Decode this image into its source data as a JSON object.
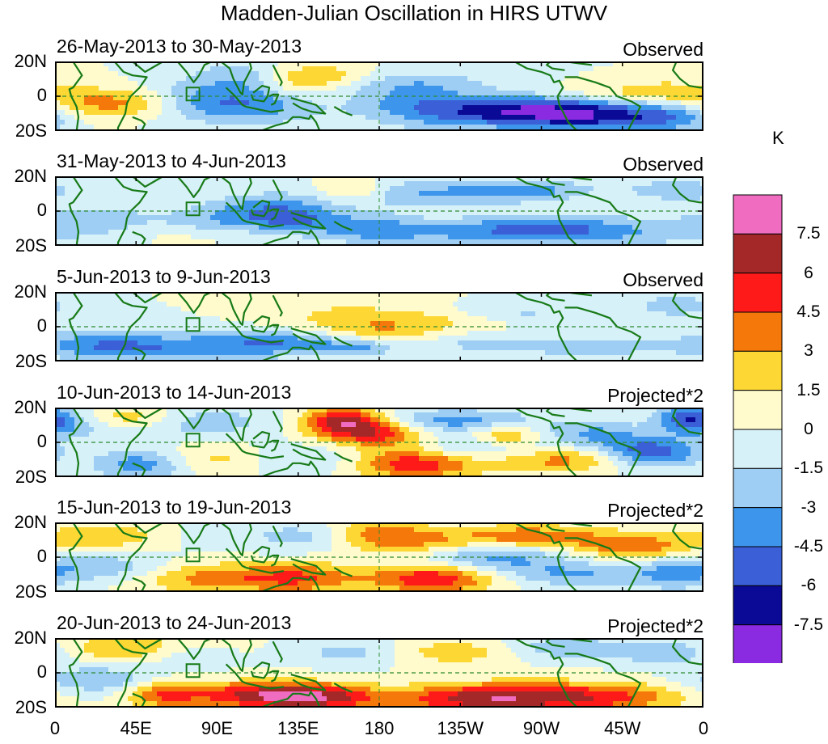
{
  "title": "Madden-Julian Oscillation in HIRS UTWV",
  "panels": [
    {
      "date_range": "26-May-2013 to 30-May-2013",
      "label": "Observed"
    },
    {
      "date_range": "31-May-2013 to 4-Jun-2013",
      "label": "Observed"
    },
    {
      "date_range": "5-Jun-2013 to 9-Jun-2013",
      "label": "Observed"
    },
    {
      "date_range": "10-Jun-2013 to 14-Jun-2013",
      "label": "Projected*2"
    },
    {
      "date_range": "15-Jun-2013 to 19-Jun-2013",
      "label": "Projected*2"
    },
    {
      "date_range": "20-Jun-2013 to 24-Jun-2013",
      "label": "Projected*2"
    }
  ],
  "chart_data": {
    "type": "heatmap",
    "title": "Madden-Julian Oscillation in HIRS UTWV",
    "x_ticks": [
      "0",
      "45E",
      "90E",
      "135E",
      "180",
      "135W",
      "90W",
      "45W",
      "0"
    ],
    "y_ticks": [
      "20N",
      "0",
      "20S"
    ],
    "colorbar": {
      "unit": "K",
      "levels": [
        "7.5",
        "6",
        "4.5",
        "3",
        "1.5",
        "0",
        "-1.5",
        "-3",
        "-4.5",
        "-6",
        "-7.5"
      ],
      "colors": [
        "#f06cc0",
        "#a52828",
        "#ff1a1a",
        "#f5780a",
        "#fdd835",
        "#fffbcc",
        "#d7f1f8",
        "#9fcef4",
        "#3d96ec",
        "#3a5fd6",
        "#0a0a96",
        "#8a2be2"
      ]
    },
    "anomaly_blobs": [
      [
        [
          18,
          -4,
          22,
          7,
          3
        ],
        [
          50,
          -4,
          20,
          6,
          3
        ],
        [
          73,
          -3,
          26,
          8,
          -3
        ],
        [
          100,
          12,
          18,
          6,
          -2
        ],
        [
          120,
          -4,
          30,
          8,
          -4
        ],
        [
          135,
          8,
          14,
          6,
          3
        ],
        [
          152,
          -3,
          25,
          6,
          2
        ],
        [
          158,
          12,
          16,
          5,
          2
        ],
        [
          185,
          -4,
          25,
          5,
          -2
        ],
        [
          200,
          6,
          30,
          6,
          -3
        ],
        [
          220,
          -12,
          30,
          6,
          -3
        ],
        [
          248,
          -6,
          35,
          5,
          -3
        ],
        [
          275,
          -10,
          30,
          6,
          -4
        ],
        [
          305,
          -12,
          30,
          6,
          -4
        ],
        [
          320,
          2,
          25,
          4,
          2
        ],
        [
          345,
          -12,
          20,
          6,
          -3
        ],
        [
          340,
          3,
          12,
          4,
          1.5
        ]
      ],
      [
        [
          25,
          -6,
          25,
          7,
          -3
        ],
        [
          55,
          -8,
          28,
          6,
          2
        ],
        [
          85,
          -6,
          30,
          5,
          -3
        ],
        [
          115,
          2,
          25,
          6,
          -3
        ],
        [
          135,
          -5,
          18,
          6,
          -3
        ],
        [
          165,
          12,
          14,
          5,
          3
        ],
        [
          175,
          -10,
          20,
          6,
          -3
        ],
        [
          205,
          10,
          40,
          6,
          -3
        ],
        [
          230,
          -12,
          40,
          5,
          -3
        ],
        [
          265,
          12,
          25,
          4,
          -3
        ],
        [
          270,
          -8,
          25,
          5,
          -2
        ],
        [
          305,
          -12,
          40,
          6,
          -3
        ],
        [
          345,
          12,
          18,
          4,
          -3
        ]
      ],
      [
        [
          20,
          -10,
          25,
          6,
          -3
        ],
        [
          55,
          -12,
          30,
          5,
          -3
        ],
        [
          100,
          -10,
          25,
          5,
          -3
        ],
        [
          135,
          -10,
          20,
          5,
          -3
        ],
        [
          160,
          5,
          25,
          7,
          2
        ],
        [
          170,
          -12,
          15,
          4,
          -3
        ],
        [
          185,
          -3,
          20,
          5,
          2
        ],
        [
          215,
          5,
          25,
          5,
          2
        ],
        [
          240,
          -10,
          25,
          4,
          -2
        ],
        [
          250,
          8,
          30,
          4,
          -2
        ],
        [
          300,
          -12,
          30,
          5,
          -2
        ],
        [
          345,
          12,
          15,
          4,
          -3
        ]
      ],
      [
        [
          8,
          12,
          18,
          6,
          -4
        ],
        [
          38,
          14,
          24,
          5,
          4
        ],
        [
          50,
          -12,
          20,
          6,
          -5
        ],
        [
          75,
          12,
          30,
          6,
          -3
        ],
        [
          100,
          -10,
          35,
          6,
          5
        ],
        [
          125,
          -10,
          30,
          6,
          -5
        ],
        [
          160,
          12,
          16,
          6,
          7
        ],
        [
          182,
          5,
          20,
          6,
          5
        ],
        [
          200,
          -12,
          25,
          6,
          6
        ],
        [
          220,
          12,
          35,
          5,
          -4
        ],
        [
          235,
          -4,
          30,
          6,
          -3
        ],
        [
          250,
          4,
          15,
          5,
          4
        ],
        [
          280,
          -10,
          30,
          5,
          4
        ],
        [
          300,
          5,
          20,
          5,
          -3
        ],
        [
          330,
          -6,
          20,
          6,
          -6
        ],
        [
          350,
          14,
          12,
          6,
          -4
        ]
      ],
      [
        [
          25,
          -6,
          25,
          6,
          -3
        ],
        [
          45,
          12,
          35,
          6,
          4
        ],
        [
          70,
          12,
          30,
          6,
          -3
        ],
        [
          95,
          -12,
          35,
          6,
          4
        ],
        [
          140,
          -12,
          20,
          6,
          3
        ],
        [
          150,
          12,
          25,
          6,
          -3
        ],
        [
          175,
          14,
          20,
          6,
          4
        ],
        [
          200,
          8,
          30,
          6,
          3
        ],
        [
          210,
          -12,
          25,
          6,
          6
        ],
        [
          240,
          0,
          30,
          6,
          -4
        ],
        [
          265,
          12,
          30,
          5,
          4
        ],
        [
          290,
          -10,
          30,
          5,
          -3
        ],
        [
          320,
          6,
          22,
          5,
          4
        ],
        [
          345,
          -10,
          15,
          6,
          -3
        ]
      ],
      [
        [
          25,
          -4,
          25,
          6,
          -3
        ],
        [
          50,
          14,
          30,
          6,
          4
        ],
        [
          60,
          -12,
          15,
          6,
          4
        ],
        [
          70,
          12,
          20,
          6,
          -3
        ],
        [
          100,
          -12,
          30,
          5,
          3
        ],
        [
          125,
          -14,
          25,
          6,
          5
        ],
        [
          155,
          -14,
          20,
          5,
          4
        ],
        [
          170,
          12,
          25,
          5,
          -3
        ],
        [
          215,
          12,
          35,
          5,
          3
        ],
        [
          225,
          -15,
          30,
          6,
          5
        ],
        [
          265,
          -14,
          30,
          6,
          4
        ],
        [
          280,
          14,
          25,
          5,
          -3
        ],
        [
          310,
          -14,
          30,
          6,
          4
        ],
        [
          340,
          12,
          20,
          5,
          -3
        ]
      ]
    ]
  }
}
